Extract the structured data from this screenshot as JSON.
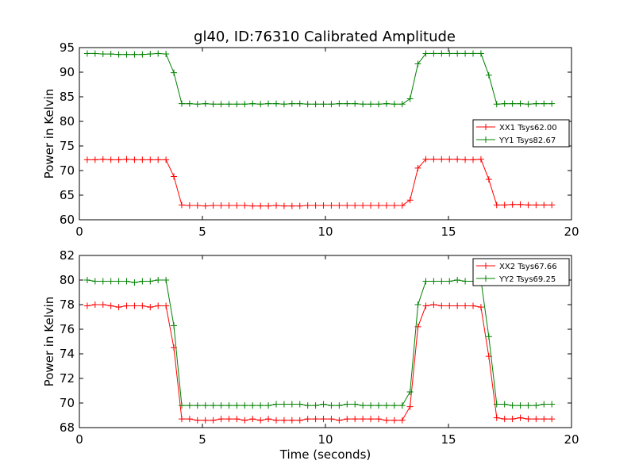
{
  "chart_data": {
    "type": "line",
    "title": "gl40, ID:76310 Calibrated Amplitude",
    "xlabel": "Time (seconds)",
    "x": [
      0.32,
      0.64,
      0.96,
      1.28,
      1.6,
      1.92,
      2.24,
      2.56,
      2.88,
      3.2,
      3.52,
      3.84,
      4.16,
      4.48,
      4.8,
      5.12,
      5.44,
      5.76,
      6.08,
      6.4,
      6.72,
      7.04,
      7.36,
      7.68,
      8.0,
      8.32,
      8.64,
      8.96,
      9.28,
      9.6,
      9.92,
      10.24,
      10.56,
      10.88,
      11.2,
      11.52,
      11.84,
      12.16,
      12.48,
      12.8,
      13.12,
      13.44,
      13.76,
      14.08,
      14.4,
      14.72,
      15.04,
      15.36,
      15.68,
      16.0,
      16.32,
      16.64,
      16.96,
      17.28,
      17.6,
      17.92,
      18.24,
      18.56,
      18.88,
      19.2
    ],
    "panels": [
      {
        "ylabel": "Power in Kelvin",
        "xlim": [
          0,
          20
        ],
        "ylim": [
          60,
          95
        ],
        "xticks": [
          0,
          5,
          10,
          15,
          20
        ],
        "yticks": [
          60,
          65,
          70,
          75,
          80,
          85,
          90,
          95
        ],
        "legend_position": "center-right",
        "series": [
          {
            "name": "XX1 Tsys62.00",
            "color": "#ff0000",
            "values": [
              72.2,
              72.2,
              72.3,
              72.2,
              72.2,
              72.3,
              72.2,
              72.2,
              72.2,
              72.2,
              72.2,
              68.8,
              63.0,
              62.9,
              62.9,
              62.8,
              62.9,
              62.9,
              62.9,
              62.9,
              62.9,
              62.8,
              62.8,
              62.8,
              62.9,
              62.8,
              62.8,
              62.8,
              62.9,
              62.9,
              62.9,
              62.9,
              62.9,
              62.9,
              62.9,
              62.9,
              62.9,
              62.9,
              62.9,
              62.9,
              62.9,
              64.0,
              70.5,
              72.3,
              72.3,
              72.3,
              72.3,
              72.3,
              72.2,
              72.2,
              72.3,
              68.2,
              63.0,
              63.0,
              63.1,
              63.1,
              63.0,
              63.0,
              63.0,
              63.0
            ]
          },
          {
            "name": "YY1 Tsys82.67",
            "color": "#008000",
            "values": [
              93.8,
              93.8,
              93.7,
              93.7,
              93.6,
              93.6,
              93.6,
              93.6,
              93.7,
              93.8,
              93.7,
              89.9,
              83.6,
              83.6,
              83.5,
              83.6,
              83.5,
              83.5,
              83.5,
              83.5,
              83.5,
              83.6,
              83.5,
              83.6,
              83.6,
              83.5,
              83.6,
              83.6,
              83.5,
              83.5,
              83.5,
              83.5,
              83.6,
              83.6,
              83.6,
              83.5,
              83.5,
              83.5,
              83.6,
              83.5,
              83.5,
              84.6,
              91.7,
              93.8,
              93.8,
              93.8,
              93.8,
              93.8,
              93.8,
              93.8,
              93.8,
              89.4,
              83.5,
              83.6,
              83.6,
              83.6,
              83.5,
              83.6,
              83.6,
              83.6
            ]
          }
        ]
      },
      {
        "ylabel": "Power in Kelvin",
        "xlim": [
          0,
          20
        ],
        "ylim": [
          68,
          82
        ],
        "xticks": [
          0,
          5,
          10,
          15,
          20
        ],
        "yticks": [
          68,
          70,
          72,
          74,
          76,
          78,
          80,
          82
        ],
        "legend_position": "top-right",
        "series": [
          {
            "name": "XX2 Tsys67.66",
            "color": "#ff0000",
            "values": [
              77.9,
              78.0,
              78.0,
              77.9,
              77.8,
              77.9,
              77.9,
              77.9,
              77.8,
              77.9,
              77.9,
              74.5,
              68.7,
              68.7,
              68.6,
              68.6,
              68.6,
              68.7,
              68.7,
              68.7,
              68.6,
              68.7,
              68.6,
              68.7,
              68.6,
              68.6,
              68.6,
              68.6,
              68.7,
              68.7,
              68.7,
              68.7,
              68.6,
              68.7,
              68.7,
              68.7,
              68.7,
              68.7,
              68.6,
              68.6,
              68.6,
              69.7,
              76.2,
              77.9,
              78.0,
              77.9,
              77.9,
              77.9,
              77.9,
              77.9,
              77.8,
              73.8,
              68.8,
              68.7,
              68.7,
              68.8,
              68.7,
              68.7,
              68.7,
              68.7
            ]
          },
          {
            "name": "YY2 Tsys69.25",
            "color": "#008000",
            "values": [
              80.0,
              79.9,
              79.9,
              79.9,
              79.9,
              79.9,
              79.8,
              79.9,
              79.9,
              80.0,
              80.0,
              76.3,
              69.8,
              69.8,
              69.8,
              69.8,
              69.8,
              69.8,
              69.8,
              69.8,
              69.8,
              69.8,
              69.8,
              69.8,
              69.9,
              69.9,
              69.9,
              69.9,
              69.8,
              69.8,
              69.9,
              69.8,
              69.8,
              69.9,
              69.9,
              69.8,
              69.8,
              69.8,
              69.8,
              69.8,
              69.8,
              70.9,
              78.0,
              79.9,
              79.9,
              79.9,
              79.9,
              80.0,
              79.9,
              79.9,
              80.0,
              75.4,
              69.9,
              69.9,
              69.8,
              69.8,
              69.8,
              69.8,
              69.9,
              69.9
            ]
          }
        ]
      }
    ]
  }
}
